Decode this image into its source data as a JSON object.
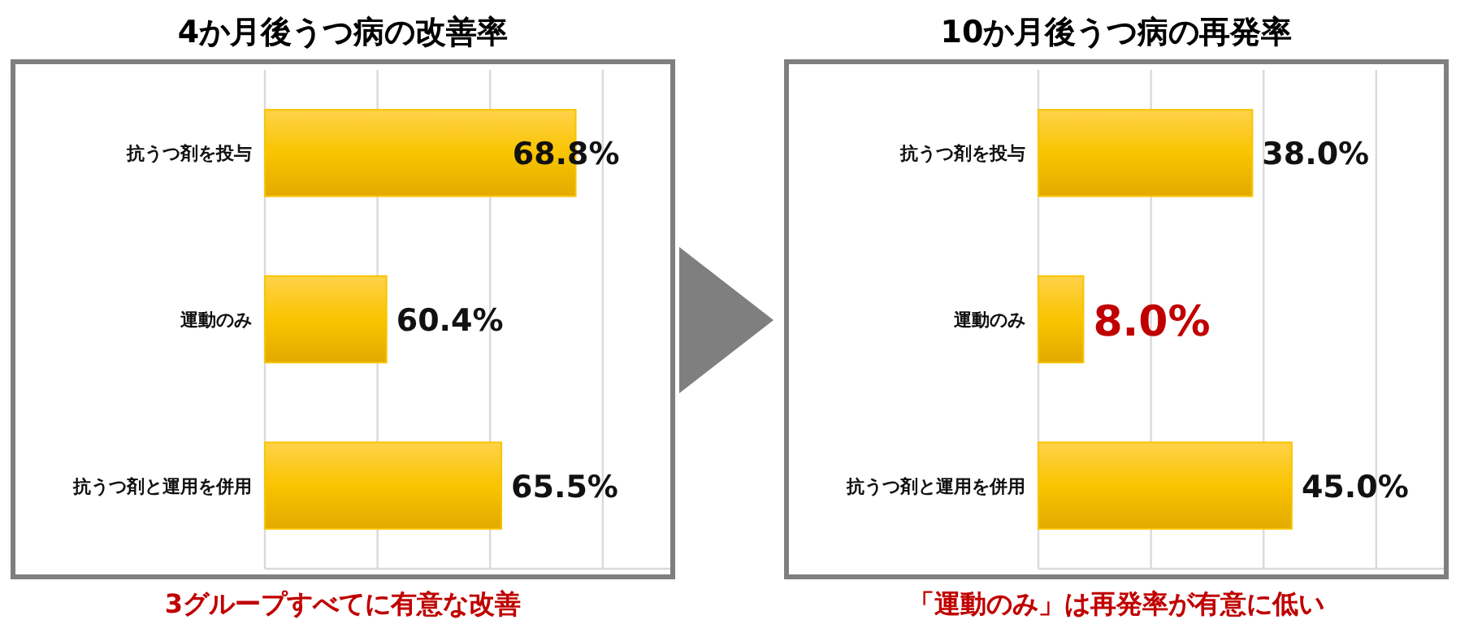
{
  "chart_data": [
    {
      "type": "bar",
      "orientation": "horizontal",
      "title": "4か月後うつ病の改善率",
      "categories": [
        "抗うつ剤を投与",
        "運動のみ",
        "抗うつ剤と運用を併用"
      ],
      "values": [
        68.8,
        60.4,
        65.5
      ],
      "color": "#f9c400",
      "value_labels": [
        "68.8%",
        "60.4%",
        "65.5%"
      ],
      "xlim": [
        55,
        73
      ],
      "xticks": [
        {
          "value": 55,
          "label": null
        },
        {
          "value": 60,
          "label": null
        },
        {
          "value": 65,
          "label": null
        },
        {
          "value": 70,
          "label": null
        }
      ],
      "grid": "x",
      "tick_labels": "y",
      "annotations": [
        "3グループすべてに有意な改善"
      ]
    },
    {
      "type": "bar",
      "orientation": "horizontal",
      "title": "10か月後うつ病の再発率",
      "categories": [
        "抗うつ剤を投与",
        "運動のみ",
        "抗うつ剤と運用を併用"
      ],
      "values": [
        38.0,
        8.0,
        45.0
      ],
      "color": "#f9c400",
      "value_labels": [
        "38.0%",
        null,
        "45.0%"
      ],
      "xlim": [
        0,
        72
      ],
      "xticks": [
        {
          "value": 0,
          "label": null
        },
        {
          "value": 20,
          "label": null
        },
        {
          "value": 40,
          "label": null
        },
        {
          "value": 60,
          "label": null
        }
      ],
      "grid": "x",
      "tick_labels": "y",
      "annotations": [
        {
          "text": "8.0%",
          "x": 8.0,
          "y": "運動のみ"
        },
        "「運動のみ」は再発率が有意に低い"
      ]
    }
  ]
}
